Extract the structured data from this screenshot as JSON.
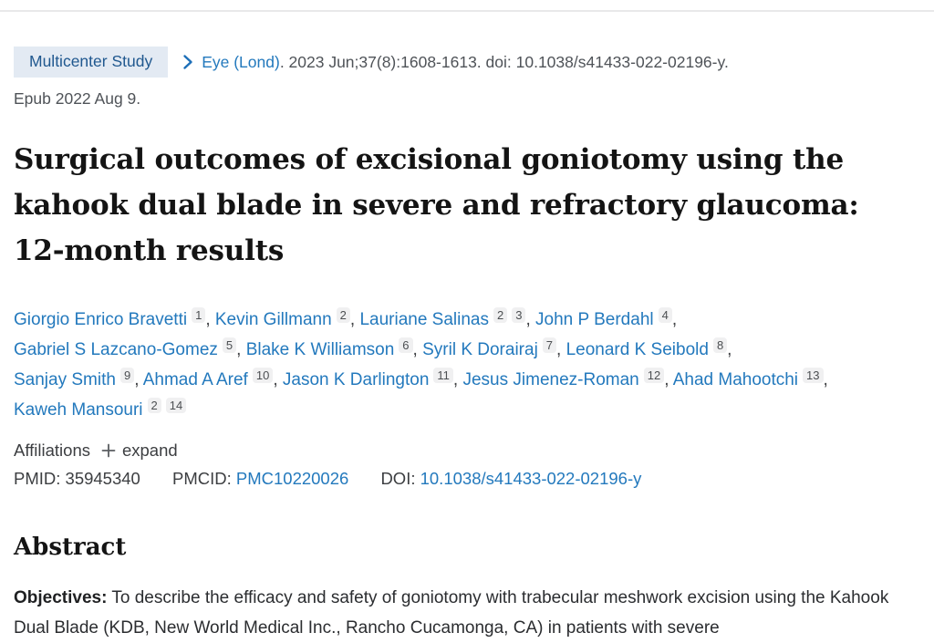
{
  "citation": {
    "badge": "Multicenter Study",
    "journal": "Eye (Lond)",
    "details": ". 2023 Jun;37(8):1608-1613. doi: 10.1038/s41433-022-02196-y.",
    "epub": "Epub 2022 Aug 9."
  },
  "title": "Surgical outcomes of excisional goniotomy using the kahook dual blade in severe and refractory glaucoma: 12-month results",
  "authors": [
    {
      "name": "Giorgio Enrico Bravetti",
      "affiliations": [
        "1"
      ]
    },
    {
      "name": "Kevin Gillmann",
      "affiliations": [
        "2"
      ]
    },
    {
      "name": "Lauriane Salinas",
      "affiliations": [
        "2",
        "3"
      ]
    },
    {
      "name": "John P Berdahl",
      "affiliations": [
        "4"
      ]
    },
    {
      "name": "Gabriel S Lazcano-Gomez",
      "affiliations": [
        "5"
      ]
    },
    {
      "name": "Blake K Williamson",
      "affiliations": [
        "6"
      ]
    },
    {
      "name": "Syril K Dorairaj",
      "affiliations": [
        "7"
      ]
    },
    {
      "name": "Leonard K Seibold",
      "affiliations": [
        "8"
      ]
    },
    {
      "name": "Sanjay Smith",
      "affiliations": [
        "9"
      ]
    },
    {
      "name": "Ahmad A Aref",
      "affiliations": [
        "10"
      ]
    },
    {
      "name": "Jason K Darlington",
      "affiliations": [
        "11"
      ]
    },
    {
      "name": "Jesus Jimenez-Roman",
      "affiliations": [
        "12"
      ]
    },
    {
      "name": "Ahad Mahootchi",
      "affiliations": [
        "13"
      ]
    },
    {
      "name": "Kaweh Mansouri",
      "affiliations": [
        "2",
        "14"
      ]
    }
  ],
  "affiliations": {
    "label": "Affiliations",
    "expand_label": "expand"
  },
  "identifiers": {
    "pmid_label": "PMID:",
    "pmid": "35945340",
    "pmcid_label": "PMCID:",
    "pmcid": "PMC10220026",
    "doi_label": "DOI:",
    "doi": "10.1038/s41433-022-02196-y"
  },
  "abstract": {
    "heading": "Abstract",
    "sections": [
      {
        "label": "Objectives:",
        "text": "To describe the efficacy and safety of goniotomy with trabecular meshwork excision using the Kahook Dual Blade (KDB, New World Medical Inc., Rancho Cucamonga, CA) in patients with severe"
      }
    ]
  },
  "icons": {
    "chevron": "chevron-right-icon",
    "plus": "plus-icon"
  },
  "colors": {
    "link": "#2379bd",
    "badge_background": "#e3eaf3",
    "badge_text": "#20588f",
    "superscript_background": "#f0f0f1",
    "muted_text": "#4f5358",
    "title_text": "#141414",
    "divider": "#e9e9ea"
  }
}
